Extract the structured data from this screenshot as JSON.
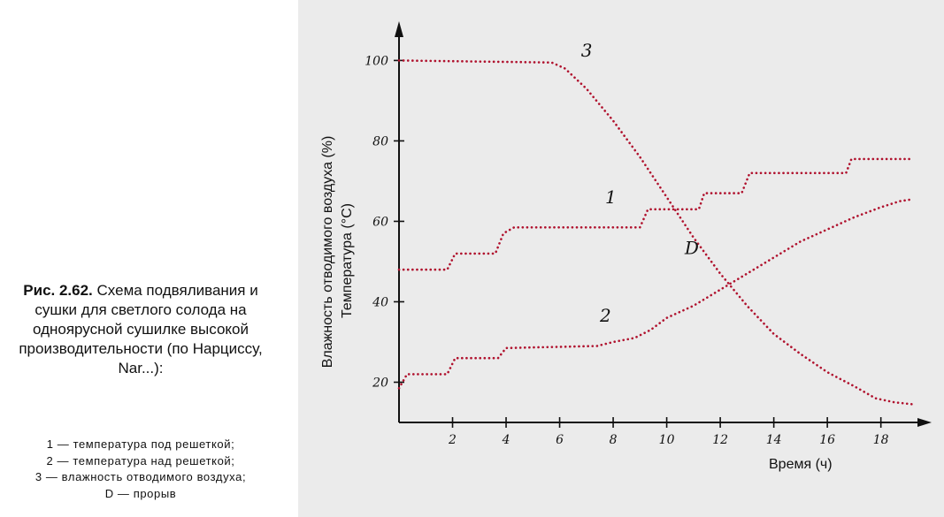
{
  "caption": {
    "fig_number": "Рис. 2.62.",
    "title": "Схема подвяливания и сушки для светлого солода на одноярусной сушилке высокой производительности (по Нарциссу, Nar...):"
  },
  "legend": [
    {
      "num": "1",
      "text": " — температура под решеткой;"
    },
    {
      "num": "2",
      "text": " — температура над решеткой;"
    },
    {
      "num": "3",
      "text": " — влажность отводимого воздуха;"
    },
    {
      "num": "D",
      "text": " — прорыв"
    }
  ],
  "colors": {
    "curve": "#b0122e",
    "axis": "#111111",
    "background_photo": "#ebebeb"
  },
  "chart_data": {
    "type": "line",
    "title": "",
    "ylabel_line1": "Влажность отводимого воздуха (%)",
    "ylabel_line2": "Температура (°С)",
    "xlabel": "Время (ч)",
    "xlim": [
      0,
      19.3
    ],
    "ylim": [
      10,
      108
    ],
    "x_ticks": [
      2,
      4,
      6,
      8,
      10,
      12,
      14,
      16,
      18
    ],
    "y_ticks": [
      20,
      40,
      60,
      80,
      100
    ],
    "grid": false,
    "series": [
      {
        "name": "1",
        "points": [
          [
            0,
            48
          ],
          [
            1.8,
            48
          ],
          [
            2.1,
            52
          ],
          [
            3.6,
            52
          ],
          [
            3.9,
            57
          ],
          [
            4.3,
            58.5
          ],
          [
            9,
            58.5
          ],
          [
            9.3,
            63
          ],
          [
            11.2,
            63
          ],
          [
            11.4,
            67
          ],
          [
            12.8,
            67
          ],
          [
            13.1,
            72
          ],
          [
            16.7,
            72
          ],
          [
            16.9,
            75.5
          ],
          [
            19.2,
            75.5
          ]
        ]
      },
      {
        "name": "2",
        "points": [
          [
            0,
            18.5
          ],
          [
            0.3,
            22
          ],
          [
            1.8,
            22
          ],
          [
            2.1,
            26
          ],
          [
            3.7,
            26
          ],
          [
            4,
            28.5
          ],
          [
            7.4,
            29
          ],
          [
            8,
            30
          ],
          [
            8.8,
            31
          ],
          [
            9.4,
            33
          ],
          [
            10,
            36
          ],
          [
            11,
            39
          ],
          [
            12,
            43
          ],
          [
            13,
            47
          ],
          [
            14,
            51
          ],
          [
            15,
            55
          ],
          [
            16,
            58
          ],
          [
            17,
            61
          ],
          [
            18,
            63.5
          ],
          [
            18.7,
            65
          ],
          [
            19.2,
            65.5
          ]
        ]
      },
      {
        "name": "3",
        "points": [
          [
            0,
            100
          ],
          [
            5.7,
            99.5
          ],
          [
            6.2,
            98
          ],
          [
            7,
            93
          ],
          [
            8,
            85
          ],
          [
            9,
            76
          ],
          [
            10,
            66
          ],
          [
            11,
            56
          ],
          [
            12,
            47
          ],
          [
            13,
            39
          ],
          [
            14,
            32
          ],
          [
            15,
            27
          ],
          [
            16,
            22.5
          ],
          [
            17,
            19
          ],
          [
            17.8,
            16
          ],
          [
            18.5,
            15
          ],
          [
            19.2,
            14.5
          ]
        ]
      }
    ],
    "annotation": {
      "label": "D",
      "x": 11.2,
      "y": 47
    }
  }
}
